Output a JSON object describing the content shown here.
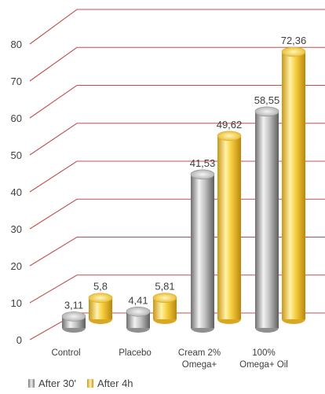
{
  "chart_data": {
    "type": "bar",
    "categories": [
      "Control",
      "Placebo",
      "Cream 2%\nOmega+",
      "100%\nOmega+ Oil"
    ],
    "series": [
      {
        "name": "After 30'",
        "values": [
          3.11,
          4.41,
          41.53,
          58.55
        ],
        "labels": [
          "3,11",
          "4,41",
          "41,53",
          "58,55"
        ],
        "color": "#a6a6a6"
      },
      {
        "name": "After 4h",
        "values": [
          5.8,
          5.81,
          49.62,
          72.36
        ],
        "labels": [
          "5,8",
          "5,81",
          "49,62",
          "72,36"
        ],
        "color": "#f2c230"
      }
    ],
    "ylim": [
      0,
      80
    ],
    "yticks": [
      "0",
      "10",
      "20",
      "30",
      "40",
      "50",
      "60",
      "70",
      "80"
    ],
    "gridline_color": "#c0504d",
    "grid": true,
    "legend_position": "bottom-left",
    "style": "3d-cylinder"
  }
}
